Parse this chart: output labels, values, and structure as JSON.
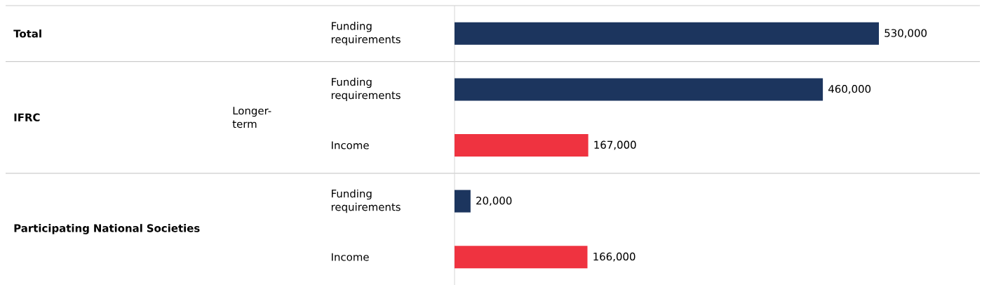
{
  "chart_data": {
    "type": "bar",
    "orientation": "horizontal",
    "categories": [
      "Funding requirements",
      "Funding requirements",
      "Income",
      "Funding requirements",
      "Income"
    ],
    "values": [
      530000,
      460000,
      167000,
      20000,
      166000
    ],
    "colors": [
      "#1c355e",
      "#1c355e",
      "#ef3340",
      "#1c355e",
      "#ef3340"
    ],
    "value_labels": [
      "530,000",
      "460,000",
      "167,000",
      "20,000",
      "166,000"
    ],
    "tick_labels": "y",
    "annotations": [
      "Total",
      "IFRC",
      "Longer-term",
      "Participating National Societies"
    ]
  }
}
